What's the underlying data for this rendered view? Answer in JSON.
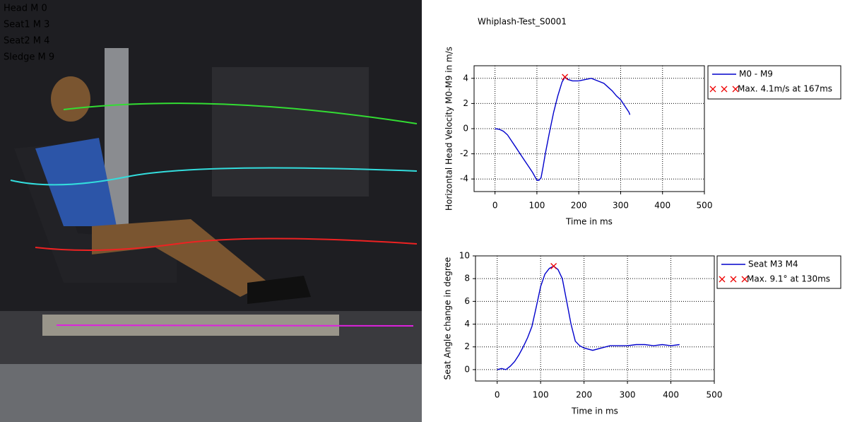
{
  "overlay_labels": [
    {
      "text": "Head M 0",
      "color": "#33dd33"
    },
    {
      "text": "Seat1 M 3",
      "color": "#33dddd"
    },
    {
      "text": "Seat2 M 4",
      "color": "#ee2222"
    },
    {
      "text": "Sledge M 9",
      "color": "#dd22dd"
    }
  ],
  "chart_data": [
    {
      "type": "line",
      "title": "Whiplash-Test_S0001",
      "x_label": "Time in ms",
      "y_label": "Horizontal Head Velocity M0-M9 in m/s",
      "xlim": [
        -50,
        500
      ],
      "xticks": [
        0,
        100,
        200,
        300,
        400,
        500
      ],
      "ylim": [
        -5,
        5
      ],
      "yticks": [
        -4,
        -2,
        0,
        2,
        4
      ],
      "grid": true,
      "series": [
        {
          "name": "M0 - M9",
          "color": "#0000cc",
          "x": [
            0,
            10,
            20,
            30,
            40,
            50,
            60,
            70,
            80,
            90,
            100,
            105,
            110,
            115,
            120,
            130,
            140,
            150,
            160,
            167,
            175,
            185,
            200,
            215,
            230,
            245,
            260,
            270,
            280,
            290,
            300,
            310,
            320,
            322
          ],
          "y": [
            0,
            -0.05,
            -0.2,
            -0.5,
            -1.0,
            -1.5,
            -2.0,
            -2.5,
            -3.0,
            -3.5,
            -4.1,
            -4.1,
            -3.9,
            -3.0,
            -2.0,
            -0.3,
            1.3,
            2.6,
            3.7,
            4.1,
            3.9,
            3.8,
            3.8,
            3.9,
            4.0,
            3.8,
            3.6,
            3.3,
            3.0,
            2.6,
            2.3,
            1.8,
            1.3,
            1.1
          ]
        }
      ],
      "marker": {
        "name": "Max. 4.1m/s at 167ms",
        "color": "#ee0000",
        "x": 167,
        "y": 4.1
      }
    },
    {
      "type": "line",
      "x_label": "Time in ms",
      "y_label": "Seat Angle change in degree",
      "xlim": [
        -50,
        500
      ],
      "xticks": [
        0,
        100,
        200,
        300,
        400,
        500
      ],
      "ylim": [
        -1,
        10
      ],
      "yticks": [
        0,
        2,
        4,
        6,
        8,
        10
      ],
      "grid": true,
      "series": [
        {
          "name": "Seat M3 M4",
          "color": "#0000cc",
          "x": [
            0,
            10,
            20,
            30,
            40,
            50,
            60,
            70,
            80,
            90,
            100,
            110,
            120,
            130,
            140,
            150,
            160,
            170,
            180,
            190,
            200,
            220,
            240,
            260,
            280,
            300,
            320,
            340,
            360,
            380,
            400,
            420
          ],
          "y": [
            0,
            0.1,
            0,
            0.3,
            0.7,
            1.3,
            2.0,
            2.8,
            3.8,
            5.5,
            7.3,
            8.4,
            8.9,
            9.1,
            8.8,
            8.0,
            6.0,
            4.0,
            2.5,
            2.1,
            1.9,
            1.7,
            1.9,
            2.1,
            2.1,
            2.1,
            2.2,
            2.2,
            2.1,
            2.2,
            2.1,
            2.2
          ]
        }
      ],
      "marker": {
        "name": "Max. 9.1° at 130ms",
        "color": "#ee0000",
        "x": 130,
        "y": 9.1
      }
    }
  ]
}
